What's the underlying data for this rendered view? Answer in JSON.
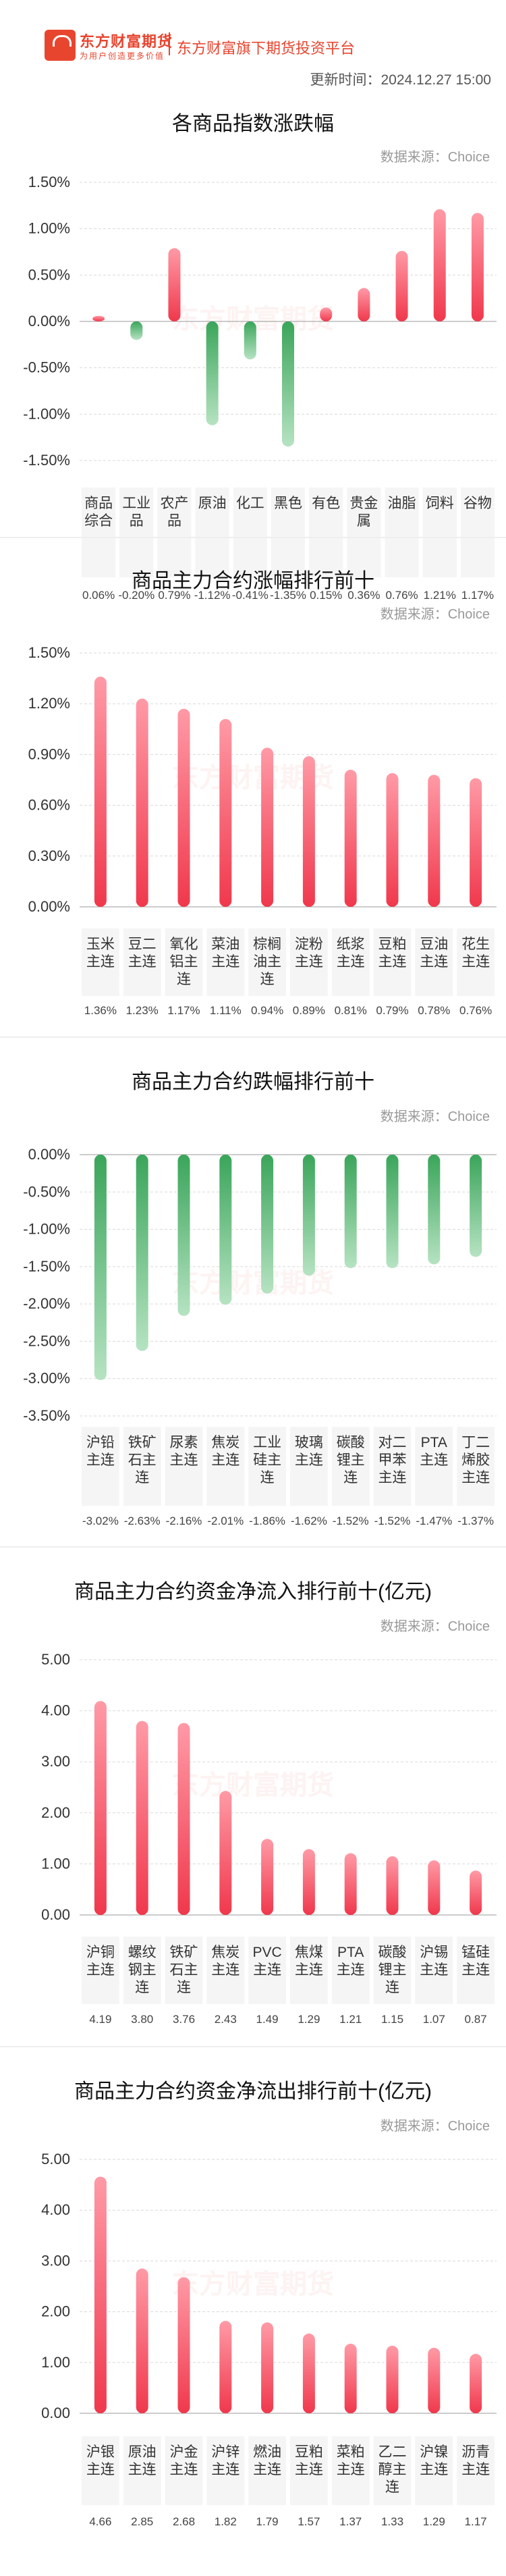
{
  "header": {
    "brand": "东方财富期货",
    "brand_sub": "为用户创造更多价值",
    "slogan": "东方财富旗下期货投资平台",
    "update_time": "更新时间：2024.12.27 15:00"
  },
  "colors": {
    "up": "#f0384c",
    "down": "#3aa55a",
    "brand": "#e8452f"
  },
  "chart_data": [
    {
      "type": "bar",
      "title": "各商品指数涨跌幅",
      "source": "数据来源：Choice",
      "categories": [
        "商品\n综合",
        "工业\n品",
        "农产\n品",
        "原油",
        "化工",
        "黑色",
        "有色",
        "贵金\n属",
        "油脂",
        "饲料",
        "谷物"
      ],
      "values": [
        0.06,
        -0.2,
        0.79,
        -1.12,
        -0.41,
        -1.35,
        0.15,
        0.36,
        0.76,
        1.21,
        1.17
      ],
      "value_labels": [
        "0.06%",
        "-0.20%",
        "0.79%",
        "-1.12%",
        "-0.41%",
        "-1.35%",
        "0.15%",
        "0.36%",
        "0.76%",
        "1.21%",
        "1.17%"
      ],
      "yticks": [
        "1.50%",
        "1.00%",
        "0.50%",
        "0.00%",
        "-0.50%",
        "-1.00%",
        "-1.50%"
      ],
      "ylim": [
        -1.5,
        1.5
      ]
    },
    {
      "type": "bar",
      "title": "商品主力合约涨幅排行前十",
      "source": "数据来源：Choice",
      "categories": [
        "玉米\n主连",
        "豆二\n主连",
        "氧化\n铝主\n连",
        "菜油\n主连",
        "棕榈\n油主\n连",
        "淀粉\n主连",
        "纸浆\n主连",
        "豆粕\n主连",
        "豆油\n主连",
        "花生\n主连"
      ],
      "values": [
        1.36,
        1.23,
        1.17,
        1.11,
        0.94,
        0.89,
        0.81,
        0.79,
        0.78,
        0.76
      ],
      "value_labels": [
        "1.36%",
        "1.23%",
        "1.17%",
        "1.11%",
        "0.94%",
        "0.89%",
        "0.81%",
        "0.79%",
        "0.78%",
        "0.76%"
      ],
      "yticks": [
        "1.50%",
        "1.20%",
        "0.90%",
        "0.60%",
        "0.30%",
        "0.00%"
      ],
      "ylim": [
        0,
        1.5
      ]
    },
    {
      "type": "bar",
      "title": "商品主力合约跌幅排行前十",
      "source": "数据来源：Choice",
      "categories": [
        "沪铅\n主连",
        "铁矿\n石主\n连",
        "尿素\n主连",
        "焦炭\n主连",
        "工业\n硅主\n连",
        "玻璃\n主连",
        "碳酸\n锂主\n连",
        "对二\n甲苯\n主连",
        "PTA\n主连",
        "丁二\n烯胶\n主连"
      ],
      "values": [
        -3.02,
        -2.63,
        -2.16,
        -2.01,
        -1.86,
        -1.62,
        -1.52,
        -1.52,
        -1.47,
        -1.37
      ],
      "value_labels": [
        "-3.02%",
        "-2.63%",
        "-2.16%",
        "-2.01%",
        "-1.86%",
        "-1.62%",
        "-1.52%",
        "-1.52%",
        "-1.47%",
        "-1.37%"
      ],
      "yticks": [
        "0.00%",
        "-0.50%",
        "-1.00%",
        "-1.50%",
        "-2.00%",
        "-2.50%",
        "-3.00%",
        "-3.50%"
      ],
      "ylim": [
        -3.5,
        0
      ]
    },
    {
      "type": "bar",
      "title": "商品主力合约资金净流入排行前十(亿元)",
      "source": "数据来源：Choice",
      "categories": [
        "沪铜\n主连",
        "螺纹\n钢主\n连",
        "铁矿\n石主\n连",
        "焦炭\n主连",
        "PVC\n主连",
        "焦煤\n主连",
        "PTA\n主连",
        "碳酸\n锂主\n连",
        "沪锡\n主连",
        "锰硅\n主连"
      ],
      "values": [
        4.19,
        3.8,
        3.76,
        2.43,
        1.49,
        1.29,
        1.21,
        1.15,
        1.07,
        0.87
      ],
      "value_labels": [
        "4.19",
        "3.80",
        "3.76",
        "2.43",
        "1.49",
        "1.29",
        "1.21",
        "1.15",
        "1.07",
        "0.87"
      ],
      "yticks": [
        "5.00",
        "4.00",
        "3.00",
        "2.00",
        "1.00",
        "0.00"
      ],
      "ylim": [
        0,
        5
      ]
    },
    {
      "type": "bar",
      "title": "商品主力合约资金净流出排行前十(亿元)",
      "source": "数据来源：Choice",
      "categories": [
        "沪银\n主连",
        "原油\n主连",
        "沪金\n主连",
        "沪锌\n主连",
        "燃油\n主连",
        "豆粕\n主连",
        "菜粕\n主连",
        "乙二\n醇主\n连",
        "沪镍\n主连",
        "沥青\n主连"
      ],
      "values": [
        4.66,
        2.85,
        2.68,
        1.82,
        1.79,
        1.57,
        1.37,
        1.33,
        1.29,
        1.17
      ],
      "value_labels": [
        "4.66",
        "2.85",
        "2.68",
        "1.82",
        "1.79",
        "1.57",
        "1.37",
        "1.33",
        "1.29",
        "1.17"
      ],
      "yticks": [
        "5.00",
        "4.00",
        "3.00",
        "2.00",
        "1.00",
        "0.00"
      ],
      "ylim": [
        0,
        5
      ]
    }
  ]
}
